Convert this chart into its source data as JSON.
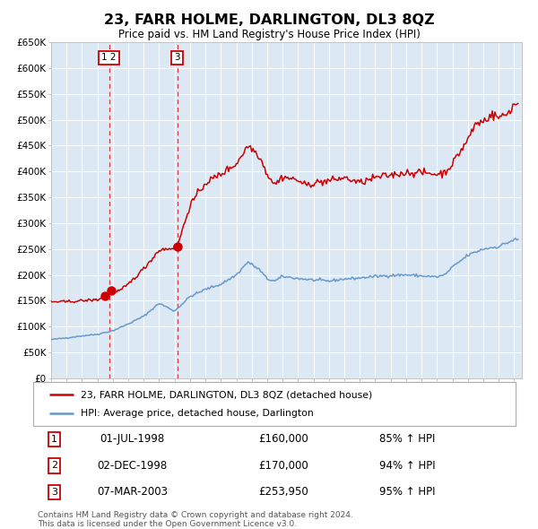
{
  "title": "23, FARR HOLME, DARLINGTON, DL3 8QZ",
  "subtitle": "Price paid vs. HM Land Registry's House Price Index (HPI)",
  "bg_color": "#dce9f5",
  "red_line_color": "#cc0000",
  "blue_line_color": "#6699cc",
  "sale1_date": 1998.5,
  "sale1_price": 160000,
  "sale2_date": 1998.917,
  "sale2_price": 170000,
  "sale3_date": 2003.167,
  "sale3_price": 253950,
  "vline1_date": 1998.75,
  "vline3_date": 2003.167,
  "label12_date": 1998.75,
  "label3_date": 2003.167,
  "legend_red_label": "23, FARR HOLME, DARLINGTON, DL3 8QZ (detached house)",
  "legend_blue_label": "HPI: Average price, detached house, Darlington",
  "table_rows": [
    [
      "1",
      "01-JUL-1998",
      "£160,000",
      "85% ↑ HPI"
    ],
    [
      "2",
      "02-DEC-1998",
      "£170,000",
      "94% ↑ HPI"
    ],
    [
      "3",
      "07-MAR-2003",
      "£253,950",
      "95% ↑ HPI"
    ]
  ],
  "footnote1": "Contains HM Land Registry data © Crown copyright and database right 2024.",
  "footnote2": "This data is licensed under the Open Government Licence v3.0.",
  "xmin": 1995.0,
  "xmax": 2025.5,
  "ymin": 0,
  "ymax": 650000,
  "yticks": [
    0,
    50000,
    100000,
    150000,
    200000,
    250000,
    300000,
    350000,
    400000,
    450000,
    500000,
    550000,
    600000,
    650000
  ],
  "ytick_labels": [
    "£0",
    "£50K",
    "£100K",
    "£150K",
    "£200K",
    "£250K",
    "£300K",
    "£350K",
    "£400K",
    "£450K",
    "£500K",
    "£550K",
    "£600K",
    "£650K"
  ],
  "xticks": [
    1995,
    1996,
    1997,
    1998,
    1999,
    2000,
    2001,
    2002,
    2003,
    2004,
    2005,
    2006,
    2007,
    2008,
    2009,
    2010,
    2011,
    2012,
    2013,
    2014,
    2015,
    2016,
    2017,
    2018,
    2019,
    2020,
    2021,
    2022,
    2023,
    2024,
    2025
  ]
}
